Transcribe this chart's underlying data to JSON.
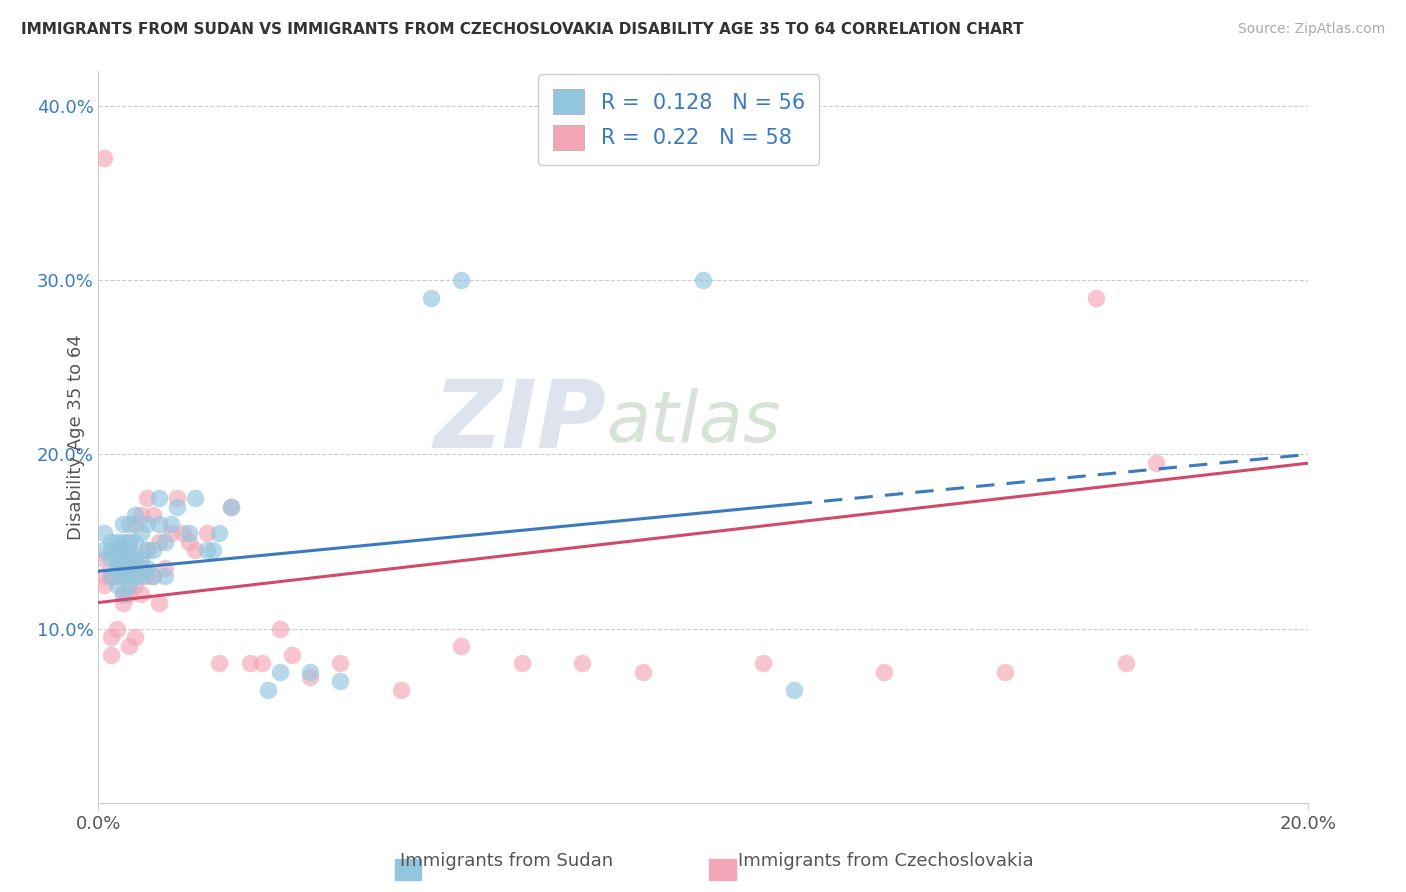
{
  "title": "IMMIGRANTS FROM SUDAN VS IMMIGRANTS FROM CZECHOSLOVAKIA DISABILITY AGE 35 TO 64 CORRELATION CHART",
  "source": "Source: ZipAtlas.com",
  "xlabel_sudan": "Immigrants from Sudan",
  "xlabel_czech": "Immigrants from Czechoslovakia",
  "ylabel": "Disability Age 35 to 64",
  "xlim": [
    0.0,
    0.2
  ],
  "ylim": [
    0.0,
    0.42
  ],
  "sudan_color": "#92c5de",
  "czech_color": "#f4a6b8",
  "sudan_line_color": "#3a7abf",
  "czech_line_color": "#d04a6a",
  "legend_text_color": "#3a7abf",
  "ytick_color": "#3a7abf",
  "sudan_R": 0.128,
  "sudan_N": 56,
  "czech_R": 0.22,
  "czech_N": 58,
  "sudan_line_x0": 0.0,
  "sudan_line_y0": 0.133,
  "sudan_line_x1": 0.2,
  "sudan_line_y1": 0.2,
  "sudan_line_solid_end": 0.115,
  "czech_line_x0": 0.0,
  "czech_line_y0": 0.115,
  "czech_line_x1": 0.2,
  "czech_line_y1": 0.195,
  "czech_line_solid_end": 0.165,
  "sudan_points_x": [
    0.001,
    0.001,
    0.002,
    0.002,
    0.002,
    0.002,
    0.003,
    0.003,
    0.003,
    0.003,
    0.004,
    0.004,
    0.004,
    0.004,
    0.004,
    0.004,
    0.004,
    0.005,
    0.005,
    0.005,
    0.005,
    0.005,
    0.005,
    0.005,
    0.006,
    0.006,
    0.006,
    0.006,
    0.007,
    0.007,
    0.007,
    0.008,
    0.008,
    0.008,
    0.009,
    0.009,
    0.01,
    0.01,
    0.011,
    0.011,
    0.012,
    0.013,
    0.015,
    0.016,
    0.018,
    0.019,
    0.02,
    0.022,
    0.028,
    0.03,
    0.035,
    0.04,
    0.055,
    0.06,
    0.1,
    0.115
  ],
  "sudan_points_y": [
    0.145,
    0.155,
    0.13,
    0.14,
    0.145,
    0.15,
    0.125,
    0.135,
    0.14,
    0.15,
    0.12,
    0.13,
    0.135,
    0.14,
    0.145,
    0.15,
    0.16,
    0.125,
    0.13,
    0.135,
    0.14,
    0.145,
    0.15,
    0.16,
    0.13,
    0.14,
    0.15,
    0.165,
    0.13,
    0.14,
    0.155,
    0.135,
    0.145,
    0.16,
    0.13,
    0.145,
    0.16,
    0.175,
    0.13,
    0.15,
    0.16,
    0.17,
    0.155,
    0.175,
    0.145,
    0.145,
    0.155,
    0.17,
    0.065,
    0.075,
    0.075,
    0.07,
    0.29,
    0.3,
    0.3,
    0.065
  ],
  "czech_points_x": [
    0.001,
    0.001,
    0.001,
    0.001,
    0.002,
    0.002,
    0.002,
    0.003,
    0.003,
    0.003,
    0.004,
    0.004,
    0.004,
    0.004,
    0.005,
    0.005,
    0.005,
    0.005,
    0.006,
    0.006,
    0.006,
    0.006,
    0.007,
    0.007,
    0.007,
    0.008,
    0.008,
    0.008,
    0.009,
    0.009,
    0.01,
    0.01,
    0.011,
    0.012,
    0.013,
    0.014,
    0.015,
    0.016,
    0.018,
    0.02,
    0.022,
    0.025,
    0.027,
    0.03,
    0.032,
    0.035,
    0.04,
    0.05,
    0.06,
    0.07,
    0.08,
    0.09,
    0.11,
    0.13,
    0.15,
    0.165,
    0.17,
    0.175
  ],
  "czech_points_y": [
    0.37,
    0.125,
    0.13,
    0.14,
    0.085,
    0.095,
    0.13,
    0.1,
    0.13,
    0.145,
    0.115,
    0.12,
    0.135,
    0.145,
    0.09,
    0.12,
    0.135,
    0.15,
    0.095,
    0.125,
    0.14,
    0.16,
    0.12,
    0.135,
    0.165,
    0.13,
    0.145,
    0.175,
    0.13,
    0.165,
    0.115,
    0.15,
    0.135,
    0.155,
    0.175,
    0.155,
    0.15,
    0.145,
    0.155,
    0.08,
    0.17,
    0.08,
    0.08,
    0.1,
    0.085,
    0.072,
    0.08,
    0.065,
    0.09,
    0.08,
    0.08,
    0.075,
    0.08,
    0.075,
    0.075,
    0.29,
    0.08,
    0.195
  ]
}
